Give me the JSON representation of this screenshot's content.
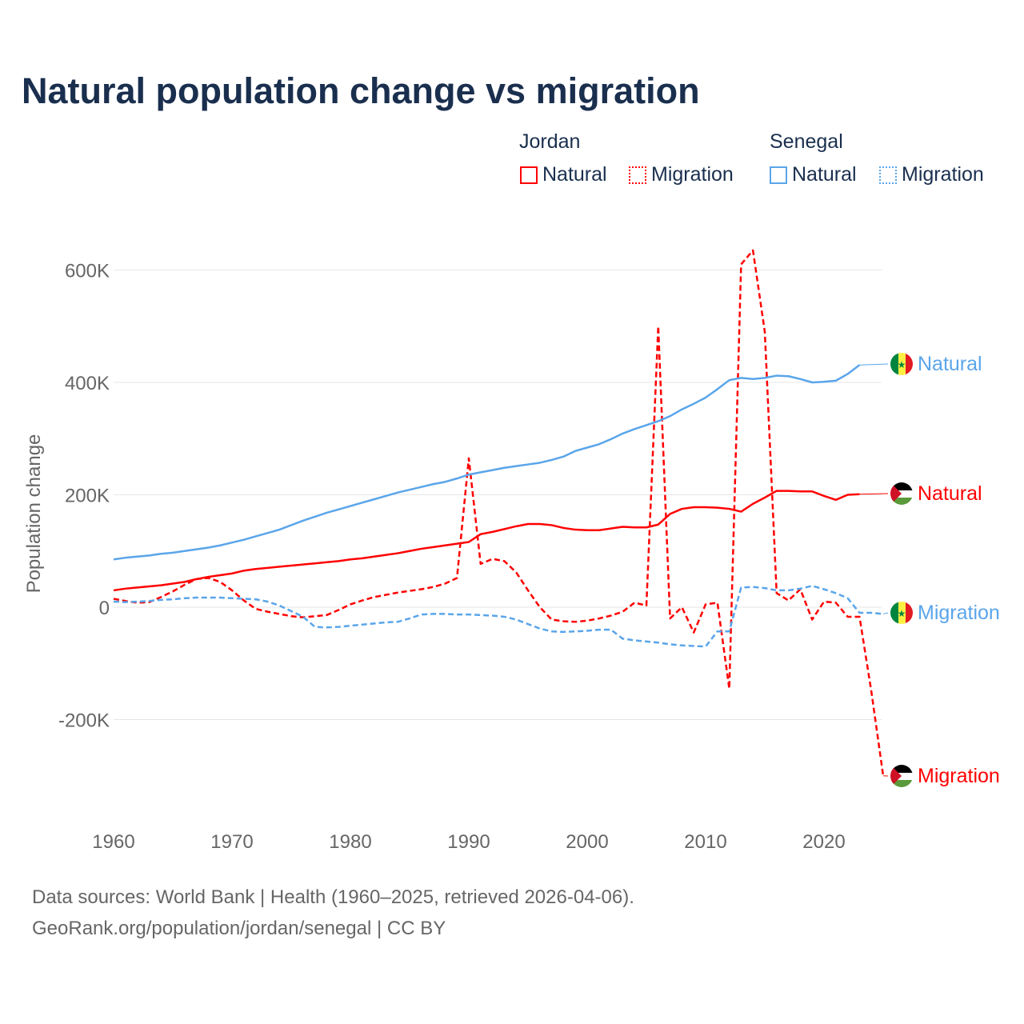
{
  "title": "Natural population change vs migration",
  "legend": {
    "groups": [
      {
        "name": "Jordan",
        "items": [
          "Natural",
          "Migration"
        ],
        "color": "#ff0000"
      },
      {
        "name": "Senegal",
        "items": [
          "Natural",
          "Migration"
        ],
        "color": "#5aa5ea"
      }
    ]
  },
  "source_line1": "Data sources: World Bank | Health (1960–2025, retrieved 2026-04-06).",
  "source_line2": "GeoRank.org/population/jordan/senegal | CC BY",
  "chart_data": {
    "type": "line",
    "title": "Natural population change vs migration",
    "ylabel": "Population change",
    "xlabel": "",
    "xlim": [
      1960,
      2025
    ],
    "ylim": [
      -300000,
      640000
    ],
    "x_ticks": [
      1960,
      1970,
      1980,
      1990,
      2000,
      2010,
      2020
    ],
    "y_ticks": [
      -200000,
      0,
      200000,
      400000,
      600000
    ],
    "y_tick_labels": [
      "-200K",
      "0",
      "200K",
      "400K",
      "600K"
    ],
    "grid": true,
    "x_start": 1960,
    "units": "thousands",
    "series": [
      {
        "name": "Jordan Natural",
        "label": "Natural",
        "country": "Jordan",
        "color": "#ff0000",
        "dash": false,
        "values": [
          30,
          33,
          35,
          37,
          39,
          42,
          45,
          50,
          54,
          57,
          60,
          65,
          68,
          70,
          72,
          74,
          76,
          78,
          80,
          82,
          85,
          87,
          90,
          93,
          96,
          100,
          104,
          107,
          110,
          113,
          116,
          130,
          134,
          139,
          144,
          148,
          148,
          146,
          141,
          138,
          137,
          137,
          140,
          143,
          142,
          142,
          147,
          166,
          175,
          178,
          178,
          177,
          175,
          170,
          184,
          195,
          207,
          207,
          206,
          206,
          198,
          191,
          200,
          201
        ]
      },
      {
        "name": "Jordan Migration",
        "label": "Migration",
        "country": "Jordan",
        "color": "#ff0000",
        "dash": true,
        "values": [
          15,
          11,
          8,
          9,
          18,
          28,
          40,
          50,
          52,
          45,
          30,
          12,
          -3,
          -8,
          -12,
          -16,
          -18,
          -16,
          -14,
          -5,
          5,
          12,
          18,
          22,
          26,
          29,
          32,
          36,
          42,
          52,
          265,
          77,
          86,
          82,
          62,
          30,
          0,
          -22,
          -25,
          -26,
          -24,
          -20,
          -15,
          -8,
          8,
          3,
          500,
          -20,
          0,
          -45,
          5,
          8,
          -145,
          610,
          635,
          490,
          25,
          12,
          32,
          -22,
          10,
          8,
          -17,
          -17,
          -150,
          -300
        ]
      },
      {
        "name": "Senegal Natural",
        "label": "Natural",
        "country": "Senegal",
        "color": "#5aa5ea",
        "dash": false,
        "values": [
          85,
          88,
          90,
          92,
          95,
          97,
          100,
          103,
          106,
          110,
          115,
          120,
          126,
          132,
          138,
          146,
          154,
          161,
          168,
          174,
          180,
          186,
          192,
          198,
          204,
          209,
          214,
          219,
          223,
          229,
          236,
          240,
          244,
          248,
          251,
          254,
          257,
          262,
          268,
          278,
          284,
          290,
          299,
          309,
          317,
          324,
          331,
          340,
          352,
          362,
          373,
          388,
          404,
          408,
          406,
          408,
          412,
          411,
          406,
          400,
          401,
          403,
          415,
          431
        ]
      },
      {
        "name": "Senegal Migration",
        "label": "Migration",
        "country": "Senegal",
        "color": "#5aa5ea",
        "dash": true,
        "values": [
          10,
          9,
          10,
          11,
          13,
          14,
          16,
          17,
          17,
          17,
          16,
          15,
          14,
          10,
          3,
          -7,
          -17,
          -35,
          -36,
          -35,
          -33,
          -31,
          -29,
          -27,
          -26,
          -20,
          -13,
          -12,
          -12,
          -13,
          -13,
          -14,
          -15,
          -17,
          -22,
          -30,
          -38,
          -43,
          -44,
          -43,
          -42,
          -40,
          -40,
          -56,
          -59,
          -61,
          -63,
          -66,
          -68,
          -69,
          -70,
          -43,
          -43,
          35,
          36,
          34,
          30,
          30,
          33,
          38,
          32,
          25,
          16,
          -10,
          -10,
          -12
        ]
      }
    ]
  }
}
